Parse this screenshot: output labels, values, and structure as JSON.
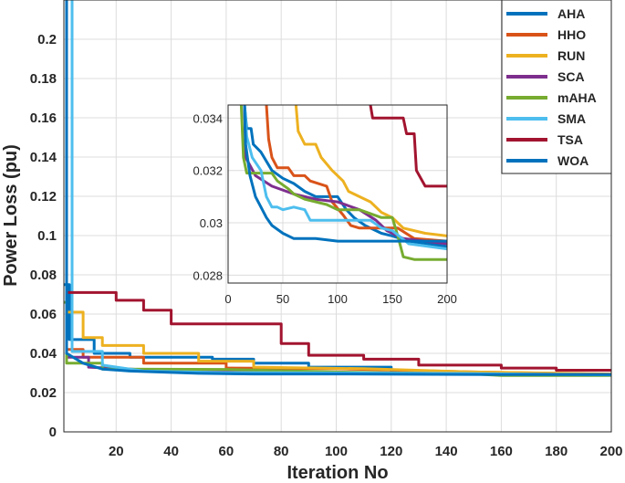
{
  "chart_data": [
    {
      "type": "line",
      "title": "",
      "xlabel": "Iteration No",
      "ylabel": "Power Loss (pu)",
      "xlim": [
        1,
        200
      ],
      "ylim": [
        0,
        0.22
      ],
      "xticks": [
        20,
        40,
        60,
        80,
        100,
        120,
        140,
        160,
        180,
        200
      ],
      "yticks": [
        0,
        0.02,
        0.04,
        0.06,
        0.08,
        0.1,
        0.12,
        0.14,
        0.16,
        0.18,
        0.2
      ],
      "grid": true,
      "legend_position": "top-right",
      "series": [
        {
          "name": "AHA",
          "color": "#0072BD",
          "points": [
            [
              1,
              0.075
            ],
            [
              3,
              0.075
            ],
            [
              3,
              0.047
            ],
            [
              12,
              0.047
            ],
            [
              12,
              0.04
            ],
            [
              25,
              0.04
            ],
            [
              25,
              0.038
            ],
            [
              55,
              0.038
            ],
            [
              55,
              0.037
            ],
            [
              70,
              0.037
            ],
            [
              70,
              0.035
            ],
            [
              90,
              0.035
            ],
            [
              90,
              0.033
            ],
            [
              120,
              0.033
            ],
            [
              120,
              0.0305
            ],
            [
              200,
              0.029
            ]
          ]
        },
        {
          "name": "HHO",
          "color": "#D95319",
          "points": [
            [
              1,
              0.23
            ],
            [
              2,
              0.23
            ],
            [
              2,
              0.042
            ],
            [
              8,
              0.042
            ],
            [
              8,
              0.038
            ],
            [
              30,
              0.038
            ],
            [
              30,
              0.035
            ],
            [
              60,
              0.035
            ],
            [
              60,
              0.0325
            ],
            [
              100,
              0.0322
            ],
            [
              150,
              0.0305
            ],
            [
              200,
              0.0293
            ]
          ]
        },
        {
          "name": "RUN",
          "color": "#EDB120",
          "points": [
            [
              1,
              0.23
            ],
            [
              2,
              0.23
            ],
            [
              2,
              0.061
            ],
            [
              8,
              0.061
            ],
            [
              8,
              0.048
            ],
            [
              15,
              0.048
            ],
            [
              15,
              0.044
            ],
            [
              30,
              0.044
            ],
            [
              30,
              0.04
            ],
            [
              50,
              0.04
            ],
            [
              50,
              0.036
            ],
            [
              70,
              0.036
            ],
            [
              70,
              0.033
            ],
            [
              110,
              0.0322
            ],
            [
              150,
              0.0305
            ],
            [
              200,
              0.0295
            ]
          ]
        },
        {
          "name": "SCA",
          "color": "#7E2F8E",
          "points": [
            [
              1,
              0.23
            ],
            [
              2,
              0.23
            ],
            [
              2,
              0.038
            ],
            [
              10,
              0.038
            ],
            [
              10,
              0.033
            ],
            [
              40,
              0.031
            ],
            [
              100,
              0.0298
            ],
            [
              200,
              0.0292
            ]
          ]
        },
        {
          "name": "mAHA",
          "color": "#77AC30",
          "points": [
            [
              1,
              0.066
            ],
            [
              2,
              0.066
            ],
            [
              2,
              0.035
            ],
            [
              15,
              0.035
            ],
            [
              15,
              0.032
            ],
            [
              60,
              0.0318
            ],
            [
              100,
              0.0305
            ],
            [
              150,
              0.0295
            ],
            [
              160,
              0.0287
            ],
            [
              200,
              0.0287
            ]
          ]
        },
        {
          "name": "SMA",
          "color": "#4DBEEE",
          "points": [
            [
              1,
              0.23
            ],
            [
              4,
              0.23
            ],
            [
              4,
              0.041
            ],
            [
              15,
              0.041
            ],
            [
              15,
              0.034
            ],
            [
              30,
              0.031
            ],
            [
              60,
              0.0302
            ],
            [
              100,
              0.03
            ],
            [
              150,
              0.0297
            ],
            [
              200,
              0.029
            ]
          ]
        },
        {
          "name": "TSA",
          "color": "#A2142F",
          "points": [
            [
              1,
              0.23
            ],
            [
              2,
              0.23
            ],
            [
              2,
              0.071
            ],
            [
              20,
              0.071
            ],
            [
              20,
              0.067
            ],
            [
              30,
              0.067
            ],
            [
              30,
              0.062
            ],
            [
              40,
              0.062
            ],
            [
              40,
              0.055
            ],
            [
              80,
              0.055
            ],
            [
              80,
              0.045
            ],
            [
              90,
              0.045
            ],
            [
              90,
              0.039
            ],
            [
              110,
              0.039
            ],
            [
              110,
              0.037
            ],
            [
              130,
              0.037
            ],
            [
              130,
              0.034
            ],
            [
              160,
              0.034
            ],
            [
              160,
              0.0325
            ],
            [
              180,
              0.0325
            ],
            [
              180,
              0.0314
            ],
            [
              200,
              0.0314
            ]
          ]
        },
        {
          "name": "WOA",
          "color": "#0072BD",
          "points": [
            [
              1,
              0.23
            ],
            [
              2,
              0.23
            ],
            [
              2,
              0.04
            ],
            [
              8,
              0.035
            ],
            [
              15,
              0.032
            ],
            [
              25,
              0.031
            ],
            [
              35,
              0.0305
            ],
            [
              50,
              0.0298
            ],
            [
              70,
              0.0295
            ],
            [
              100,
              0.0295
            ],
            [
              160,
              0.0292
            ],
            [
              200,
              0.0292
            ]
          ]
        }
      ]
    },
    {
      "type": "line",
      "title": "",
      "xlabel": "",
      "ylabel": "",
      "xlim": [
        0,
        200
      ],
      "ylim": [
        0.0277,
        0.0345
      ],
      "xticks": [
        0,
        50,
        100,
        150,
        200
      ],
      "yticks": [
        0.028,
        0.03,
        0.032,
        0.034
      ],
      "grid": true,
      "legend_position": "none",
      "series": [
        {
          "name": "AHA",
          "color": "#0072BD",
          "points": [
            [
              15,
              0.0345
            ],
            [
              17,
              0.0336
            ],
            [
              21,
              0.0336
            ],
            [
              23,
              0.033
            ],
            [
              30,
              0.0327
            ],
            [
              40,
              0.032
            ],
            [
              50,
              0.0317
            ],
            [
              60,
              0.0315
            ],
            [
              70,
              0.0312
            ],
            [
              80,
              0.031
            ],
            [
              100,
              0.031
            ],
            [
              108,
              0.0305
            ],
            [
              115,
              0.0302
            ],
            [
              125,
              0.0299
            ],
            [
              140,
              0.0296
            ],
            [
              150,
              0.0295
            ],
            [
              165,
              0.0293
            ],
            [
              200,
              0.0291
            ]
          ]
        },
        {
          "name": "HHO",
          "color": "#D95319",
          "points": [
            [
              35,
              0.0345
            ],
            [
              37,
              0.0332
            ],
            [
              40,
              0.0325
            ],
            [
              45,
              0.0321
            ],
            [
              55,
              0.0321
            ],
            [
              60,
              0.0318
            ],
            [
              70,
              0.0318
            ],
            [
              75,
              0.0316
            ],
            [
              90,
              0.0314
            ],
            [
              95,
              0.0308
            ],
            [
              105,
              0.0303
            ],
            [
              112,
              0.0299
            ],
            [
              120,
              0.0298
            ],
            [
              140,
              0.0298
            ],
            [
              155,
              0.0298
            ],
            [
              170,
              0.0294
            ],
            [
              200,
              0.0293
            ]
          ]
        },
        {
          "name": "RUN",
          "color": "#EDB120",
          "points": [
            [
              62,
              0.0345
            ],
            [
              64,
              0.0335
            ],
            [
              70,
              0.033
            ],
            [
              80,
              0.033
            ],
            [
              85,
              0.0325
            ],
            [
              95,
              0.032
            ],
            [
              100,
              0.0318
            ],
            [
              105,
              0.0316
            ],
            [
              110,
              0.0312
            ],
            [
              120,
              0.031
            ],
            [
              130,
              0.0308
            ],
            [
              140,
              0.0304
            ],
            [
              150,
              0.0302
            ],
            [
              160,
              0.0298
            ],
            [
              180,
              0.0296
            ],
            [
              200,
              0.0295
            ]
          ]
        },
        {
          "name": "SCA",
          "color": "#7E2F8E",
          "points": [
            [
              15,
              0.0345
            ],
            [
              16,
              0.0325
            ],
            [
              25,
              0.0318
            ],
            [
              40,
              0.0314
            ],
            [
              60,
              0.0311
            ],
            [
              80,
              0.0309
            ],
            [
              100,
              0.0308
            ],
            [
              120,
              0.0305
            ],
            [
              135,
              0.0301
            ],
            [
              145,
              0.0297
            ],
            [
              160,
              0.0294
            ],
            [
              200,
              0.0292
            ]
          ]
        },
        {
          "name": "mAHA",
          "color": "#77AC30",
          "points": [
            [
              12,
              0.0345
            ],
            [
              14,
              0.0325
            ],
            [
              17,
              0.0319
            ],
            [
              40,
              0.0319
            ],
            [
              45,
              0.0316
            ],
            [
              55,
              0.0313
            ],
            [
              60,
              0.0311
            ],
            [
              70,
              0.0309
            ],
            [
              90,
              0.0307
            ],
            [
              100,
              0.0305
            ],
            [
              120,
              0.0305
            ],
            [
              140,
              0.0302
            ],
            [
              150,
              0.0302
            ],
            [
              155,
              0.0295
            ],
            [
              160,
              0.0287
            ],
            [
              170,
              0.0286
            ],
            [
              200,
              0.0286
            ]
          ]
        },
        {
          "name": "SMA",
          "color": "#4DBEEE",
          "points": [
            [
              15,
              0.0345
            ],
            [
              17,
              0.0333
            ],
            [
              22,
              0.0325
            ],
            [
              30,
              0.032
            ],
            [
              35,
              0.031
            ],
            [
              40,
              0.0306
            ],
            [
              45,
              0.0306
            ],
            [
              50,
              0.0305
            ],
            [
              60,
              0.0306
            ],
            [
              70,
              0.0305
            ],
            [
              75,
              0.0301
            ],
            [
              90,
              0.0301
            ],
            [
              110,
              0.0301
            ],
            [
              130,
              0.0301
            ],
            [
              140,
              0.0298
            ],
            [
              150,
              0.0297
            ],
            [
              165,
              0.0292
            ],
            [
              200,
              0.029
            ]
          ]
        },
        {
          "name": "TSA",
          "color": "#A2142F",
          "points": [
            [
              130,
              0.0345
            ],
            [
              132,
              0.034
            ],
            [
              160,
              0.034
            ],
            [
              163,
              0.0334
            ],
            [
              170,
              0.0334
            ],
            [
              172,
              0.032
            ],
            [
              180,
              0.0314
            ],
            [
              200,
              0.0314
            ]
          ]
        },
        {
          "name": "WOA",
          "color": "#0072BD",
          "points": [
            [
              15,
              0.0345
            ],
            [
              16,
              0.033
            ],
            [
              20,
              0.0318
            ],
            [
              25,
              0.031
            ],
            [
              30,
              0.0306
            ],
            [
              35,
              0.0302
            ],
            [
              40,
              0.0299
            ],
            [
              50,
              0.0296
            ],
            [
              60,
              0.0294
            ],
            [
              80,
              0.0294
            ],
            [
              100,
              0.0293
            ],
            [
              200,
              0.0293
            ]
          ]
        }
      ]
    }
  ]
}
